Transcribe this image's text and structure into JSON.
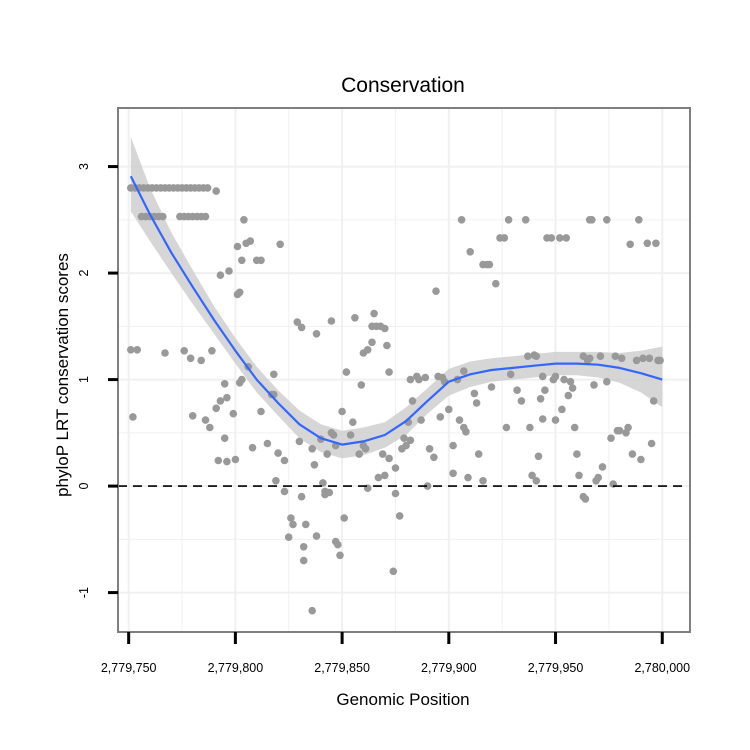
{
  "chart_data": {
    "type": "scatter",
    "title": "Conservation",
    "xlabel": "Genomic Position",
    "ylabel": "phyloP LRT conservation scores",
    "xlim": [
      2779745,
      2780013
    ],
    "ylim": [
      -1.37,
      3.55
    ],
    "x_ticks": [
      2779750,
      2779800,
      2779850,
      2779900,
      2779950,
      2780000
    ],
    "x_tick_labels": [
      "2,779,750",
      "2,779,800",
      "2,779,850",
      "2,779,900",
      "2,779,950",
      "2,780,000"
    ],
    "y_ticks": [
      -1,
      0,
      1,
      2,
      3
    ],
    "y_tick_labels": [
      "-1",
      "0",
      "1",
      "2",
      "3"
    ],
    "grid": true,
    "reference_line": {
      "y": 0,
      "style": "dashed"
    },
    "colors": {
      "points": "#999999",
      "smooth_line": "#3366ff",
      "confidence_band": "#cccccc",
      "panel_border": "#7f7f7f",
      "grid": "#f0f0f0"
    },
    "points": [
      [
        2779751,
        2.8
      ],
      [
        2779753,
        2.8
      ],
      [
        2779755,
        2.8
      ],
      [
        2779757,
        2.8
      ],
      [
        2779759,
        2.8
      ],
      [
        2779761,
        2.8
      ],
      [
        2779763,
        2.8
      ],
      [
        2779765,
        2.8
      ],
      [
        2779767,
        2.8
      ],
      [
        2779769,
        2.8
      ],
      [
        2779771,
        2.8
      ],
      [
        2779773,
        2.8
      ],
      [
        2779775,
        2.8
      ],
      [
        2779777,
        2.8
      ],
      [
        2779779,
        2.8
      ],
      [
        2779781,
        2.8
      ],
      [
        2779783,
        2.8
      ],
      [
        2779785,
        2.8
      ],
      [
        2779787,
        2.8
      ],
      [
        2779791,
        2.77
      ],
      [
        2779756,
        2.53
      ],
      [
        2779758,
        2.53
      ],
      [
        2779760,
        2.53
      ],
      [
        2779762,
        2.53
      ],
      [
        2779764,
        2.53
      ],
      [
        2779766,
        2.53
      ],
      [
        2779774,
        2.53
      ],
      [
        2779776,
        2.53
      ],
      [
        2779778,
        2.53
      ],
      [
        2779780,
        2.53
      ],
      [
        2779782,
        2.53
      ],
      [
        2779784,
        2.53
      ],
      [
        2779786,
        2.53
      ],
      [
        2779751,
        1.28
      ],
      [
        2779754,
        1.28
      ],
      [
        2779752,
        0.65
      ],
      [
        2779767,
        1.25
      ],
      [
        2779776,
        1.27
      ],
      [
        2779779,
        1.2
      ],
      [
        2779784,
        1.18
      ],
      [
        2779789,
        1.27
      ],
      [
        2779780,
        0.66
      ],
      [
        2779786,
        0.62
      ],
      [
        2779788,
        0.55
      ],
      [
        2779791,
        0.73
      ],
      [
        2779793,
        0.8
      ],
      [
        2779793,
        1.98
      ],
      [
        2779795,
        0.96
      ],
      [
        2779796,
        0.83
      ],
      [
        2779797,
        2.02
      ],
      [
        2779792,
        0.24
      ],
      [
        2779796,
        0.23
      ],
      [
        2779795,
        0.45
      ],
      [
        2779799,
        0.68
      ],
      [
        2779800,
        0.25
      ],
      [
        2779801,
        1.8
      ],
      [
        2779801,
        2.25
      ],
      [
        2779802,
        1.82
      ],
      [
        2779802,
        0.97
      ],
      [
        2779803,
        1.0
      ],
      [
        2779803,
        2.12
      ],
      [
        2779804,
        2.5
      ],
      [
        2779805,
        2.28
      ],
      [
        2779806,
        1.12
      ],
      [
        2779807,
        2.3
      ],
      [
        2779808,
        0.36
      ],
      [
        2779810,
        2.12
      ],
      [
        2779812,
        2.12
      ],
      [
        2779812,
        0.7
      ],
      [
        2779815,
        0.4
      ],
      [
        2779817,
        0.86
      ],
      [
        2779818,
        0.86
      ],
      [
        2779818,
        1.05
      ],
      [
        2779820,
        0.31
      ],
      [
        2779819,
        0.05
      ],
      [
        2779821,
        2.27
      ],
      [
        2779823,
        -0.05
      ],
      [
        2779823,
        0.24
      ],
      [
        2779825,
        -0.48
      ],
      [
        2779826,
        -0.3
      ],
      [
        2779827,
        -0.36
      ],
      [
        2779829,
        1.54
      ],
      [
        2779830,
        0.42
      ],
      [
        2779831,
        1.49
      ],
      [
        2779831,
        -0.1
      ],
      [
        2779832,
        -0.57
      ],
      [
        2779832,
        -0.7
      ],
      [
        2779833,
        -0.36
      ],
      [
        2779836,
        -1.17
      ],
      [
        2779836,
        0.35
      ],
      [
        2779837,
        0.2
      ],
      [
        2779838,
        -0.47
      ],
      [
        2779838,
        1.43
      ],
      [
        2779840,
        0.44
      ],
      [
        2779841,
        0.03
      ],
      [
        2779842,
        -0.08
      ],
      [
        2779842,
        -0.05
      ],
      [
        2779843,
        0.3
      ],
      [
        2779844,
        -0.06
      ],
      [
        2779845,
        1.55
      ],
      [
        2779845,
        0.5
      ],
      [
        2779846,
        0.48
      ],
      [
        2779847,
        0.38
      ],
      [
        2779847,
        -0.52
      ],
      [
        2779848,
        -0.55
      ],
      [
        2779849,
        -0.65
      ],
      [
        2779850,
        0.7
      ],
      [
        2779851,
        -0.3
      ],
      [
        2779852,
        1.07
      ],
      [
        2779854,
        0.48
      ],
      [
        2779855,
        0.6
      ],
      [
        2779856,
        1.58
      ],
      [
        2779858,
        0.3
      ],
      [
        2779859,
        0.95
      ],
      [
        2779860,
        0.38
      ],
      [
        2779860,
        1.25
      ],
      [
        2779861,
        0.35
      ],
      [
        2779862,
        -0.02
      ],
      [
        2779862,
        1.28
      ],
      [
        2779864,
        1.5
      ],
      [
        2779864,
        1.35
      ],
      [
        2779865,
        1.62
      ],
      [
        2779866,
        1.5
      ],
      [
        2779867,
        0.08
      ],
      [
        2779868,
        1.5
      ],
      [
        2779869,
        0.3
      ],
      [
        2779870,
        1.48
      ],
      [
        2779870,
        0.1
      ],
      [
        2779871,
        1.32
      ],
      [
        2779872,
        1.07
      ],
      [
        2779872,
        0.26
      ],
      [
        2779874,
        -0.8
      ],
      [
        2779875,
        0.17
      ],
      [
        2779875,
        -0.07
      ],
      [
        2779877,
        -0.28
      ],
      [
        2779878,
        0.35
      ],
      [
        2779879,
        0.45
      ],
      [
        2779880,
        0.38
      ],
      [
        2779881,
        0.6
      ],
      [
        2779882,
        0.43
      ],
      [
        2779882,
        1.0
      ],
      [
        2779883,
        0.8
      ],
      [
        2779885,
        1.03
      ],
      [
        2779886,
        1.0
      ],
      [
        2779887,
        0.62
      ],
      [
        2779889,
        1.02
      ],
      [
        2779890,
        0.0
      ],
      [
        2779891,
        0.35
      ],
      [
        2779893,
        0.27
      ],
      [
        2779894,
        1.83
      ],
      [
        2779895,
        1.03
      ],
      [
        2779896,
        0.65
      ],
      [
        2779897,
        1.02
      ],
      [
        2779898,
        0.98
      ],
      [
        2779900,
        0.72
      ],
      [
        2779902,
        0.38
      ],
      [
        2779902,
        0.12
      ],
      [
        2779904,
        1.0
      ],
      [
        2779905,
        0.62
      ],
      [
        2779906,
        2.5
      ],
      [
        2779907,
        1.08
      ],
      [
        2779907,
        0.55
      ],
      [
        2779908,
        0.51
      ],
      [
        2779909,
        0.08
      ],
      [
        2779910,
        2.2
      ],
      [
        2779912,
        0.87
      ],
      [
        2779913,
        0.78
      ],
      [
        2779914,
        0.3
      ],
      [
        2779916,
        0.05
      ],
      [
        2779916,
        2.08
      ],
      [
        2779918,
        2.08
      ],
      [
        2779919,
        2.08
      ],
      [
        2779920,
        0.93
      ],
      [
        2779922,
        1.9
      ],
      [
        2779924,
        2.33
      ],
      [
        2779926,
        2.33
      ],
      [
        2779927,
        0.55
      ],
      [
        2779928,
        2.5
      ],
      [
        2779929,
        1.05
      ],
      [
        2779932,
        0.9
      ],
      [
        2779934,
        0.8
      ],
      [
        2779936,
        2.5
      ],
      [
        2779937,
        1.22
      ],
      [
        2779938,
        0.55
      ],
      [
        2779939,
        0.1
      ],
      [
        2779940,
        1.23
      ],
      [
        2779941,
        1.22
      ],
      [
        2779941,
        0.05
      ],
      [
        2779942,
        0.28
      ],
      [
        2779943,
        0.82
      ],
      [
        2779944,
        0.63
      ],
      [
        2779944,
        1.03
      ],
      [
        2779945,
        0.9
      ],
      [
        2779946,
        2.33
      ],
      [
        2779948,
        2.33
      ],
      [
        2779949,
        1.0
      ],
      [
        2779950,
        1.03
      ],
      [
        2779950,
        0.62
      ],
      [
        2779952,
        2.33
      ],
      [
        2779953,
        0.72
      ],
      [
        2779954,
        1.0
      ],
      [
        2779955,
        2.33
      ],
      [
        2779956,
        0.85
      ],
      [
        2779957,
        0.98
      ],
      [
        2779958,
        0.92
      ],
      [
        2779959,
        0.55
      ],
      [
        2779960,
        0.3
      ],
      [
        2779961,
        0.1
      ],
      [
        2779963,
        1.22
      ],
      [
        2779963,
        -0.1
      ],
      [
        2779964,
        -0.12
      ],
      [
        2779965,
        1.18
      ],
      [
        2779966,
        1.2
      ],
      [
        2779966,
        2.5
      ],
      [
        2779967,
        2.5
      ],
      [
        2779968,
        0.95
      ],
      [
        2779969,
        0.05
      ],
      [
        2779970,
        0.08
      ],
      [
        2779971,
        1.22
      ],
      [
        2779972,
        0.18
      ],
      [
        2779974,
        0.98
      ],
      [
        2779974,
        2.5
      ],
      [
        2779976,
        0.45
      ],
      [
        2779977,
        0.02
      ],
      [
        2779978,
        1.22
      ],
      [
        2779979,
        0.52
      ],
      [
        2779980,
        0.52
      ],
      [
        2779981,
        1.2
      ],
      [
        2779983,
        0.5
      ],
      [
        2779984,
        0.55
      ],
      [
        2779985,
        2.27
      ],
      [
        2779986,
        0.3
      ],
      [
        2779988,
        1.18
      ],
      [
        2779989,
        2.5
      ],
      [
        2779990,
        0.25
      ],
      [
        2779991,
        1.2
      ],
      [
        2779993,
        2.28
      ],
      [
        2779994,
        1.2
      ],
      [
        2779995,
        0.4
      ],
      [
        2779996,
        0.8
      ],
      [
        2779997,
        2.28
      ],
      [
        2779998,
        1.18
      ],
      [
        2779999,
        1.18
      ]
    ],
    "smooth_fit": {
      "method": "loess",
      "x": [
        2779751,
        2779760,
        2779770,
        2779780,
        2779790,
        2779800,
        2779810,
        2779820,
        2779830,
        2779840,
        2779850,
        2779860,
        2779870,
        2779880,
        2779890,
        2779900,
        2779910,
        2779920,
        2779930,
        2779940,
        2779950,
        2779960,
        2779970,
        2779980,
        2779990,
        2780000
      ],
      "y": [
        2.91,
        2.55,
        2.19,
        1.87,
        1.56,
        1.27,
        1.0,
        0.78,
        0.58,
        0.45,
        0.39,
        0.42,
        0.48,
        0.61,
        0.8,
        0.98,
        1.05,
        1.09,
        1.11,
        1.13,
        1.15,
        1.15,
        1.14,
        1.11,
        1.06,
        1.0
      ],
      "lower": [
        2.58,
        2.3,
        2.0,
        1.71,
        1.43,
        1.15,
        0.88,
        0.66,
        0.45,
        0.32,
        0.26,
        0.29,
        0.36,
        0.48,
        0.68,
        0.85,
        0.93,
        0.98,
        1.0,
        1.02,
        1.04,
        1.04,
        1.02,
        0.97,
        0.88,
        0.74
      ],
      "upper": [
        3.28,
        2.8,
        2.38,
        2.03,
        1.69,
        1.39,
        1.12,
        0.9,
        0.71,
        0.58,
        0.52,
        0.55,
        0.6,
        0.74,
        0.92,
        1.1,
        1.17,
        1.2,
        1.22,
        1.24,
        1.26,
        1.26,
        1.26,
        1.25,
        1.27,
        1.31
      ]
    }
  }
}
